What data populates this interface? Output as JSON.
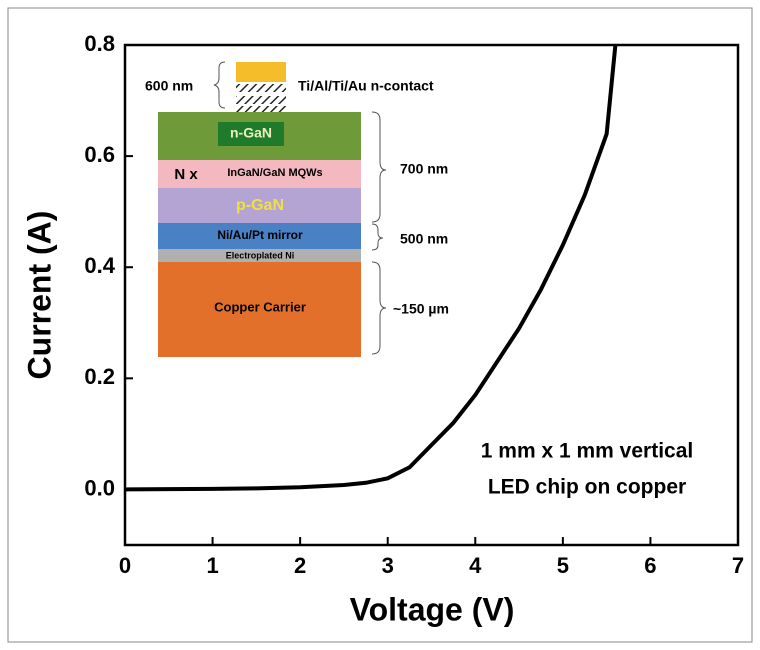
{
  "chart_data": {
    "type": "line",
    "x_label": "Voltage (V)",
    "y_label": "Current (A)",
    "x": [
      0,
      0.5,
      1,
      1.5,
      2,
      2.5,
      2.75,
      3,
      3.25,
      3.5,
      3.75,
      4,
      4.25,
      4.5,
      4.75,
      5,
      5.25,
      5.5,
      5.6
    ],
    "values": [
      0,
      0.0005,
      0.001,
      0.002,
      0.004,
      0.008,
      0.012,
      0.02,
      0.04,
      0.08,
      0.12,
      0.17,
      0.23,
      0.29,
      0.36,
      0.44,
      0.53,
      0.64,
      0.8
    ],
    "color": "#000000",
    "xlim": [
      0,
      7
    ],
    "xticks": [
      0,
      1,
      2,
      3,
      4,
      5,
      6,
      7
    ],
    "ylim": [
      -0.1,
      0.8
    ],
    "yticks": [
      {
        "value": 0,
        "label": "0.0"
      },
      0.2,
      0.4,
      0.6,
      0.8
    ],
    "annotation": [
      "1 mm x 1 mm vertical",
      "LED chip on copper"
    ],
    "inset": {
      "contact": "Ti/Al/Ti/Au n-contact",
      "contact_thickness": "600 nm",
      "n_gan": "n-GaN",
      "repeat": "N x",
      "mqw": "InGaN/GaN MQWs",
      "p_gan": "p-GaN",
      "mirror": "Ni/Au/Pt mirror",
      "ni": "Electroplated Ni",
      "copper": "Copper Carrier",
      "epi_thickness": "700 nm",
      "mirror_thickness": "500 nm",
      "carrier_thickness": "~150 µm"
    }
  }
}
